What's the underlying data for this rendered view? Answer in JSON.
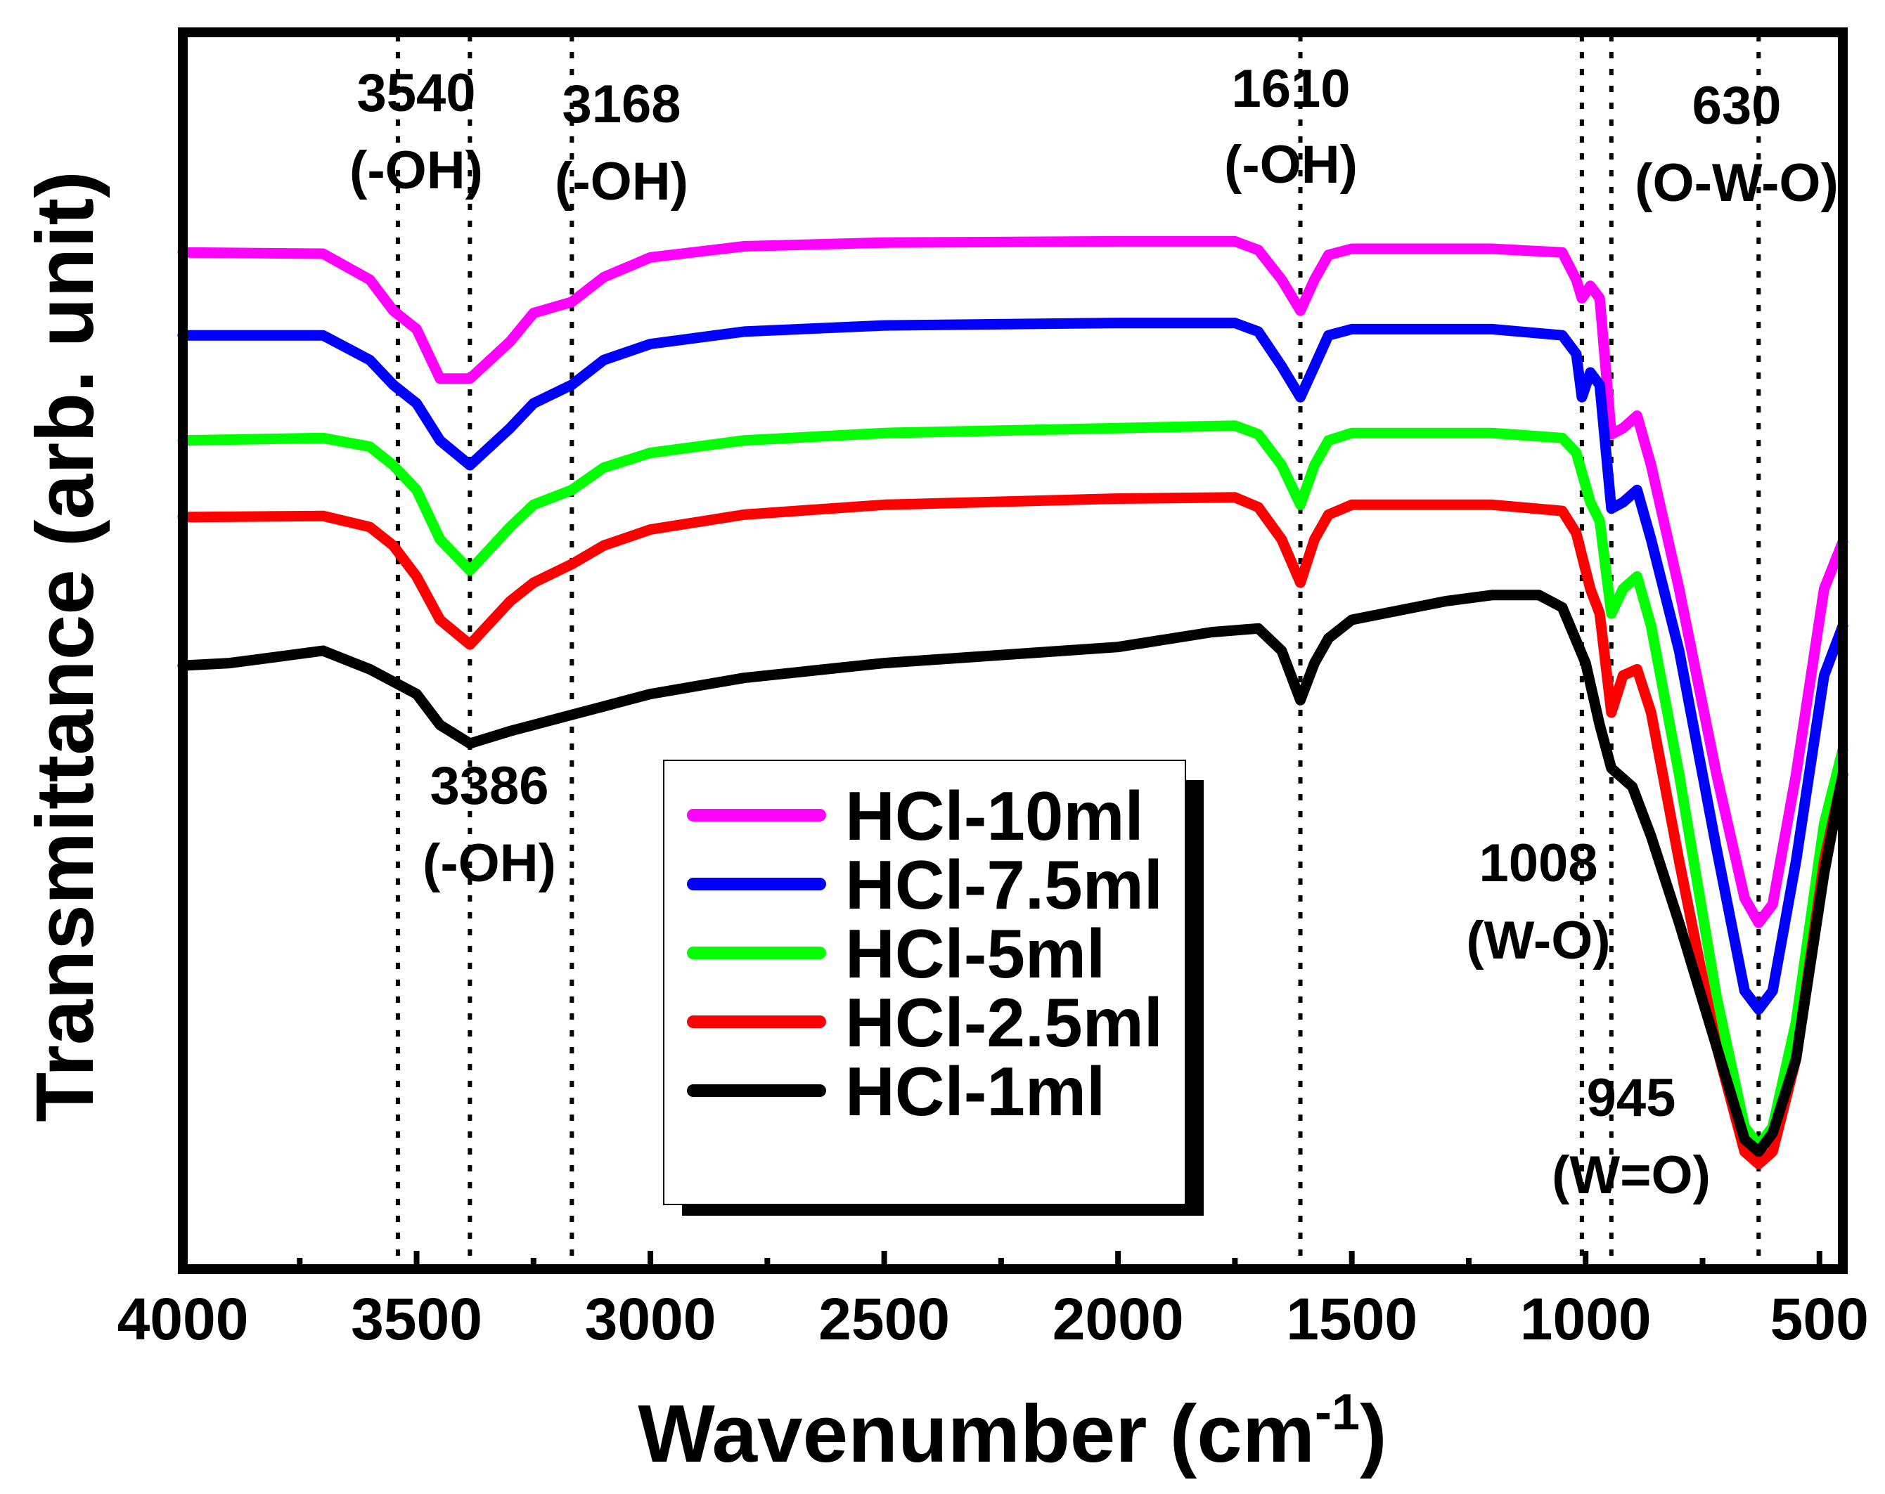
{
  "chart_data": {
    "type": "line",
    "title": "",
    "xlabel": "Wavenumber (cm",
    "xlabel_sup": "-1",
    "xlabel_close": ")",
    "ylabel": "Transmittance (arb. unit)",
    "xlim": [
      4000,
      450
    ],
    "ylim": [
      0,
      100
    ],
    "x_reversed": true,
    "xticks": [
      4000,
      3500,
      3000,
      2500,
      2000,
      1500,
      1000,
      500
    ],
    "yticks": [],
    "grid": false,
    "legend_position": "center-bottom",
    "series": [
      {
        "name": "HCl-10ml",
        "color": "#ff00ff",
        "points": [
          [
            4000,
            82.2
          ],
          [
            3700,
            82.1
          ],
          [
            3600,
            80.0
          ],
          [
            3550,
            77.5
          ],
          [
            3500,
            76.0
          ],
          [
            3450,
            72.0
          ],
          [
            3386,
            72.0
          ],
          [
            3300,
            75.0
          ],
          [
            3250,
            77.3
          ],
          [
            3168,
            78.2
          ],
          [
            3100,
            80.2
          ],
          [
            3000,
            81.8
          ],
          [
            2800,
            82.7
          ],
          [
            2500,
            83.0
          ],
          [
            2000,
            83.1
          ],
          [
            1750,
            83.1
          ],
          [
            1700,
            82.4
          ],
          [
            1650,
            80.0
          ],
          [
            1610,
            77.5
          ],
          [
            1580,
            80.0
          ],
          [
            1550,
            82.0
          ],
          [
            1500,
            82.5
          ],
          [
            1200,
            82.5
          ],
          [
            1050,
            82.2
          ],
          [
            1020,
            80.0
          ],
          [
            1008,
            78.5
          ],
          [
            990,
            79.5
          ],
          [
            970,
            78.5
          ],
          [
            945,
            67.5
          ],
          [
            920,
            68.0
          ],
          [
            890,
            69.0
          ],
          [
            860,
            65.0
          ],
          [
            800,
            55.0
          ],
          [
            720,
            40.0
          ],
          [
            660,
            30.0
          ],
          [
            630,
            28.0
          ],
          [
            600,
            29.5
          ],
          [
            550,
            40.0
          ],
          [
            490,
            55.0
          ],
          [
            450,
            58.8
          ]
        ]
      },
      {
        "name": "HCl-7.5ml",
        "color": "#0000ff",
        "points": [
          [
            4000,
            75.5
          ],
          [
            3700,
            75.5
          ],
          [
            3600,
            73.5
          ],
          [
            3550,
            71.5
          ],
          [
            3500,
            70.0
          ],
          [
            3450,
            67.0
          ],
          [
            3386,
            65.0
          ],
          [
            3300,
            68.0
          ],
          [
            3250,
            70.0
          ],
          [
            3168,
            71.5
          ],
          [
            3100,
            73.5
          ],
          [
            3000,
            74.8
          ],
          [
            2800,
            75.8
          ],
          [
            2500,
            76.3
          ],
          [
            2000,
            76.5
          ],
          [
            1750,
            76.5
          ],
          [
            1700,
            75.8
          ],
          [
            1650,
            73.0
          ],
          [
            1610,
            70.5
          ],
          [
            1580,
            73.0
          ],
          [
            1550,
            75.5
          ],
          [
            1500,
            76.0
          ],
          [
            1200,
            76.0
          ],
          [
            1050,
            75.5
          ],
          [
            1020,
            74.0
          ],
          [
            1008,
            70.5
          ],
          [
            990,
            72.5
          ],
          [
            970,
            71.5
          ],
          [
            945,
            61.5
          ],
          [
            920,
            62.0
          ],
          [
            890,
            63.0
          ],
          [
            860,
            59.0
          ],
          [
            800,
            50.0
          ],
          [
            720,
            34.0
          ],
          [
            660,
            22.5
          ],
          [
            630,
            21.0
          ],
          [
            600,
            22.5
          ],
          [
            550,
            33.0
          ],
          [
            490,
            48.0
          ],
          [
            450,
            52.0
          ]
        ]
      },
      {
        "name": "HCl-5ml",
        "color": "#00ff00",
        "points": [
          [
            4000,
            67.0
          ],
          [
            3700,
            67.2
          ],
          [
            3600,
            66.5
          ],
          [
            3550,
            65.0
          ],
          [
            3500,
            63.0
          ],
          [
            3450,
            59.0
          ],
          [
            3386,
            56.5
          ],
          [
            3300,
            60.0
          ],
          [
            3250,
            61.8
          ],
          [
            3168,
            63.0
          ],
          [
            3100,
            64.8
          ],
          [
            3000,
            66.0
          ],
          [
            2800,
            67.0
          ],
          [
            2500,
            67.6
          ],
          [
            2000,
            68.0
          ],
          [
            1750,
            68.2
          ],
          [
            1700,
            67.5
          ],
          [
            1650,
            65.0
          ],
          [
            1610,
            61.8
          ],
          [
            1580,
            65.0
          ],
          [
            1550,
            67.0
          ],
          [
            1500,
            67.6
          ],
          [
            1200,
            67.6
          ],
          [
            1050,
            67.2
          ],
          [
            1020,
            66.0
          ],
          [
            990,
            62.0
          ],
          [
            970,
            60.5
          ],
          [
            945,
            53.0
          ],
          [
            920,
            55.0
          ],
          [
            890,
            56.0
          ],
          [
            860,
            52.0
          ],
          [
            800,
            40.0
          ],
          [
            720,
            22.0
          ],
          [
            660,
            11.5
          ],
          [
            630,
            10.0
          ],
          [
            600,
            11.5
          ],
          [
            550,
            20.0
          ],
          [
            490,
            36.0
          ],
          [
            450,
            42.0
          ]
        ]
      },
      {
        "name": "HCl-2.5ml",
        "color": "#ff0000",
        "points": [
          [
            4000,
            60.8
          ],
          [
            3700,
            60.9
          ],
          [
            3600,
            60.0
          ],
          [
            3550,
            58.5
          ],
          [
            3500,
            56.0
          ],
          [
            3450,
            52.5
          ],
          [
            3386,
            50.5
          ],
          [
            3300,
            54.0
          ],
          [
            3250,
            55.5
          ],
          [
            3168,
            57.0
          ],
          [
            3100,
            58.5
          ],
          [
            3000,
            59.8
          ],
          [
            2800,
            61.0
          ],
          [
            2500,
            61.8
          ],
          [
            2000,
            62.3
          ],
          [
            1750,
            62.4
          ],
          [
            1700,
            61.6
          ],
          [
            1650,
            59.0
          ],
          [
            1610,
            55.5
          ],
          [
            1580,
            59.0
          ],
          [
            1550,
            61.0
          ],
          [
            1500,
            61.8
          ],
          [
            1200,
            61.8
          ],
          [
            1050,
            61.3
          ],
          [
            1020,
            59.5
          ],
          [
            990,
            55.0
          ],
          [
            970,
            53.0
          ],
          [
            945,
            45.0
          ],
          [
            920,
            48.0
          ],
          [
            890,
            48.5
          ],
          [
            860,
            45.0
          ],
          [
            800,
            33.0
          ],
          [
            720,
            18.0
          ],
          [
            660,
            9.5
          ],
          [
            630,
            8.5
          ],
          [
            600,
            9.5
          ],
          [
            550,
            17.0
          ],
          [
            490,
            33.0
          ],
          [
            450,
            40.0
          ]
        ]
      },
      {
        "name": "HCl-1ml",
        "color": "#000000",
        "points": [
          [
            4000,
            48.8
          ],
          [
            3900,
            49.0
          ],
          [
            3700,
            50.0
          ],
          [
            3600,
            48.5
          ],
          [
            3500,
            46.5
          ],
          [
            3450,
            44.0
          ],
          [
            3386,
            42.5
          ],
          [
            3300,
            43.5
          ],
          [
            3200,
            44.5
          ],
          [
            3100,
            45.5
          ],
          [
            3000,
            46.5
          ],
          [
            2800,
            47.8
          ],
          [
            2500,
            49.0
          ],
          [
            2000,
            50.3
          ],
          [
            1800,
            51.5
          ],
          [
            1700,
            51.8
          ],
          [
            1650,
            50.0
          ],
          [
            1610,
            46.0
          ],
          [
            1580,
            49.0
          ],
          [
            1550,
            51.0
          ],
          [
            1500,
            52.5
          ],
          [
            1300,
            54.0
          ],
          [
            1200,
            54.5
          ],
          [
            1100,
            54.5
          ],
          [
            1050,
            53.5
          ],
          [
            1000,
            49.0
          ],
          [
            970,
            44.0
          ],
          [
            945,
            40.5
          ],
          [
            900,
            39.0
          ],
          [
            860,
            35.0
          ],
          [
            800,
            28.0
          ],
          [
            720,
            18.0
          ],
          [
            660,
            10.5
          ],
          [
            630,
            9.5
          ],
          [
            600,
            11.0
          ],
          [
            550,
            17.0
          ],
          [
            490,
            32.0
          ],
          [
            450,
            40.0
          ]
        ]
      }
    ],
    "reference_lines": [
      3540,
      3386,
      3168,
      1610,
      1008,
      945,
      630
    ],
    "annotations": [
      {
        "wavenumber": "3540",
        "group": "(-OH)"
      },
      {
        "wavenumber": "3168",
        "group": "(-OH)"
      },
      {
        "wavenumber": "1610",
        "group": "(-OH)"
      },
      {
        "wavenumber": "630",
        "group": "(O-W-O)"
      },
      {
        "wavenumber": "3386",
        "group": "(-OH)"
      },
      {
        "wavenumber": "1008",
        "group": "(W-O)"
      },
      {
        "wavenumber": "945",
        "group": "(W=O)"
      }
    ]
  }
}
